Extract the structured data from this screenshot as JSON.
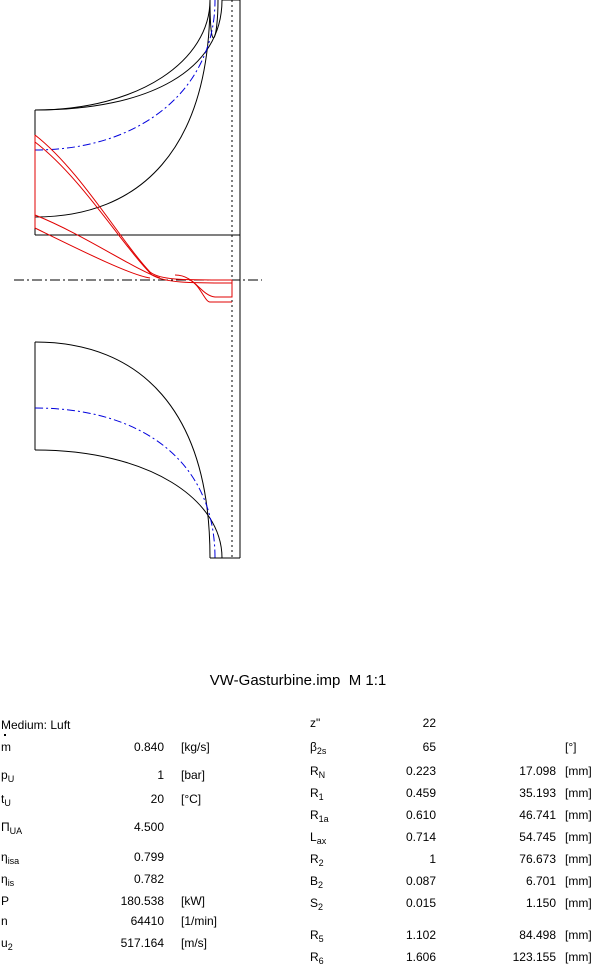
{
  "title": "VW-Gasturbine.imp",
  "scale": "M 1:1",
  "medium": "Medium: Luft",
  "left_params": [
    {
      "sym": "m",
      "sub": "",
      "value": "0.840",
      "unit": "[kg/s]"
    },
    {
      "sym": "p",
      "sub": "U",
      "value": "1",
      "unit": "[bar]"
    },
    {
      "sym": "t",
      "sub": "U",
      "value": "20",
      "unit": "[°C]"
    },
    {
      "sym": "Π",
      "sub": "UA",
      "value": "4.500",
      "unit": ""
    },
    {
      "sym": "η",
      "sub": "isa",
      "value": "0.799",
      "unit": ""
    },
    {
      "sym": "η",
      "sub": "is",
      "value": "0.782",
      "unit": ""
    },
    {
      "sym": "P",
      "sub": "",
      "value": "180.538",
      "unit": "[kW]"
    },
    {
      "sym": "n",
      "sub": "",
      "value": "64410",
      "unit": "[1/min]"
    },
    {
      "sym": "u",
      "sub": "2",
      "value": "517.164",
      "unit": "[m/s]"
    }
  ],
  "right_params": [
    {
      "sym": "z\"",
      "sub": "",
      "value": "22",
      "mm": "",
      "unit": ""
    },
    {
      "sym": "β",
      "sub": "2s",
      "value": "65",
      "mm": "",
      "unit": "[°]"
    },
    {
      "sym": "R",
      "sub": "N",
      "value": "0.223",
      "mm": "17.098",
      "unit": "[mm]"
    },
    {
      "sym": "R",
      "sub": "1",
      "value": "0.459",
      "mm": "35.193",
      "unit": "[mm]"
    },
    {
      "sym": "R",
      "sub": "1a",
      "value": "0.610",
      "mm": "46.741",
      "unit": "[mm]"
    },
    {
      "sym": "L",
      "sub": "ax",
      "value": "0.714",
      "mm": "54.745",
      "unit": "[mm]"
    },
    {
      "sym": "R",
      "sub": "2",
      "value": "1",
      "mm": "76.673",
      "unit": "[mm]"
    },
    {
      "sym": "B",
      "sub": "2",
      "value": "0.087",
      "mm": "6.701",
      "unit": "[mm]"
    },
    {
      "sym": "S",
      "sub": "2",
      "value": "0.015",
      "mm": "1.150",
      "unit": "[mm]"
    },
    {
      "sym": "R",
      "sub": "5",
      "value": "1.102",
      "mm": "84.498",
      "unit": "[mm]"
    },
    {
      "sym": "R",
      "sub": "6",
      "value": "1.606",
      "mm": "123.155",
      "unit": "[mm]"
    }
  ],
  "colors": {
    "line": "#000000",
    "blade": "#e00000",
    "midline": "#0000dd"
  }
}
